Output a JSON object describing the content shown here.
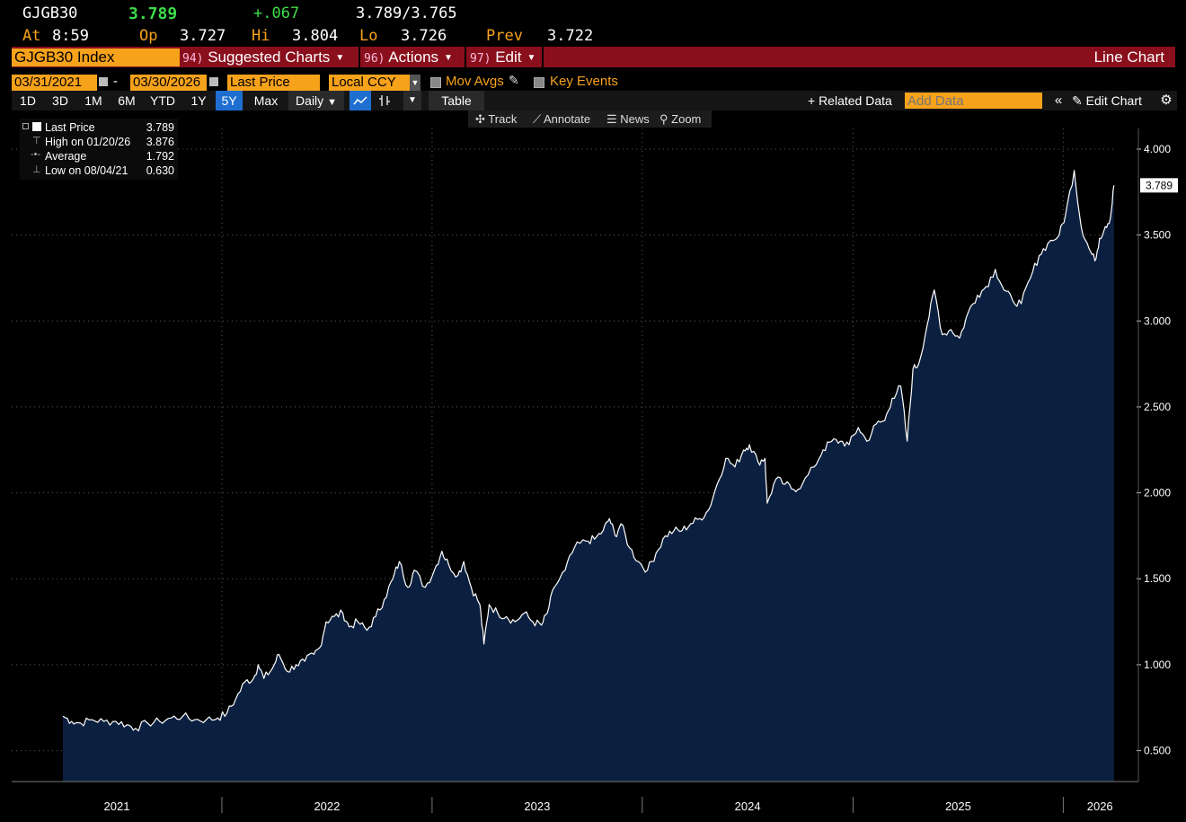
{
  "header": {
    "ticker": "GJGB30",
    "last": "3.789",
    "change": "+.067",
    "bid_ask": "3.789/3.765",
    "at_label": "At",
    "at_time": "8:59",
    "op_label": "Op",
    "op": "3.727",
    "hi_label": "Hi",
    "hi": "3.804",
    "lo_label": "Lo",
    "lo": "3.726",
    "prev_label": "Prev",
    "prev": "3.722"
  },
  "menubar": {
    "security": "GJGB30 Index",
    "suggested_num": "94)",
    "suggested": "Suggested Charts",
    "actions_num": "96)",
    "actions": "Actions",
    "edit_num": "97)",
    "edit": "Edit",
    "chart_type": "Line Chart"
  },
  "controls": {
    "start_date": "03/31/2021",
    "dash": "-",
    "end_date": "03/30/2026",
    "field": "Last Price",
    "currency": "Local CCY",
    "mov_avgs": "Mov Avgs",
    "key_events": "Key Events"
  },
  "toolbar": {
    "periods": [
      "1D",
      "3D",
      "1M",
      "6M",
      "YTD",
      "1Y",
      "5Y",
      "Max"
    ],
    "selected_period": "5Y",
    "frequency": "Daily",
    "table": "Table",
    "related": "+ Related Data",
    "add_data_placeholder": "Add Data",
    "edit_chart": "Edit Chart"
  },
  "annotate": {
    "track": "Track",
    "annotate": "Annotate",
    "news": "News",
    "zoom": "Zoom"
  },
  "legend": {
    "items": [
      {
        "label": "Last Price",
        "value": "3.789"
      },
      {
        "label": "High on 01/20/26",
        "value": "3.876"
      },
      {
        "label": "Average",
        "value": "1.792"
      },
      {
        "label": "Low on 08/04/21",
        "value": "0.630"
      }
    ]
  },
  "colors": {
    "accent_orange": "#f7a21b",
    "menubar_red": "#8a0f1c",
    "area_fill": "#0b2040",
    "line": "#ffffff",
    "change_green": "#3ddc4a"
  },
  "chart_data": {
    "type": "area",
    "x_unit": "date",
    "ylim": [
      0.32,
      4.12
    ],
    "yticks": [
      "0.500",
      "1.000",
      "1.500",
      "2.000",
      "2.500",
      "3.000",
      "3.500",
      "4.000"
    ],
    "xticks": [
      "2021",
      "2022",
      "2023",
      "2024",
      "2025",
      "2026"
    ],
    "last_label": "3.789",
    "grid": true,
    "legend_position": "top-left",
    "series": [
      {
        "points": [
          [
            "2021-03-31",
            0.7
          ],
          [
            "2021-04-15",
            0.67
          ],
          [
            "2021-05-01",
            0.66
          ],
          [
            "2021-05-20",
            0.68
          ],
          [
            "2021-06-10",
            0.67
          ],
          [
            "2021-07-01",
            0.67
          ],
          [
            "2021-07-20",
            0.65
          ],
          [
            "2021-08-04",
            0.63
          ],
          [
            "2021-08-25",
            0.66
          ],
          [
            "2021-09-15",
            0.67
          ],
          [
            "2021-10-05",
            0.69
          ],
          [
            "2021-10-25",
            0.7
          ],
          [
            "2021-11-15",
            0.68
          ],
          [
            "2021-12-05",
            0.68
          ],
          [
            "2021-12-25",
            0.69
          ],
          [
            "2022-01-10",
            0.72
          ],
          [
            "2022-01-25",
            0.8
          ],
          [
            "2022-02-10",
            0.9
          ],
          [
            "2022-02-25",
            0.92
          ],
          [
            "2022-03-05",
            1.0
          ],
          [
            "2022-03-15",
            0.92
          ],
          [
            "2022-03-30",
            0.98
          ],
          [
            "2022-04-10",
            1.06
          ],
          [
            "2022-04-25",
            0.96
          ],
          [
            "2022-05-10",
            1.0
          ],
          [
            "2022-05-25",
            1.02
          ],
          [
            "2022-06-10",
            1.06
          ],
          [
            "2022-06-20",
            1.1
          ],
          [
            "2022-07-01",
            1.25
          ],
          [
            "2022-07-15",
            1.28
          ],
          [
            "2022-07-30",
            1.3
          ],
          [
            "2022-08-10",
            1.22
          ],
          [
            "2022-08-25",
            1.25
          ],
          [
            "2022-09-10",
            1.2
          ],
          [
            "2022-09-25",
            1.28
          ],
          [
            "2022-10-10",
            1.38
          ],
          [
            "2022-10-25",
            1.5
          ],
          [
            "2022-11-05",
            1.6
          ],
          [
            "2022-11-20",
            1.45
          ],
          [
            "2022-12-01",
            1.55
          ],
          [
            "2022-12-20",
            1.45
          ],
          [
            "2023-01-05",
            1.55
          ],
          [
            "2023-01-18",
            1.66
          ],
          [
            "2023-01-30",
            1.58
          ],
          [
            "2023-02-15",
            1.52
          ],
          [
            "2023-02-25",
            1.6
          ],
          [
            "2023-03-10",
            1.45
          ],
          [
            "2023-03-25",
            1.35
          ],
          [
            "2023-04-01",
            1.12
          ],
          [
            "2023-04-10",
            1.35
          ],
          [
            "2023-04-25",
            1.3
          ],
          [
            "2023-05-10",
            1.28
          ],
          [
            "2023-05-25",
            1.25
          ],
          [
            "2023-06-10",
            1.3
          ],
          [
            "2023-06-25",
            1.25
          ],
          [
            "2023-07-10",
            1.23
          ],
          [
            "2023-07-20",
            1.3
          ],
          [
            "2023-08-01",
            1.45
          ],
          [
            "2023-08-20",
            1.55
          ],
          [
            "2023-09-05",
            1.68
          ],
          [
            "2023-09-25",
            1.72
          ],
          [
            "2023-10-10",
            1.73
          ],
          [
            "2023-10-25",
            1.78
          ],
          [
            "2023-11-05",
            1.85
          ],
          [
            "2023-11-15",
            1.75
          ],
          [
            "2023-11-25",
            1.82
          ],
          [
            "2023-12-10",
            1.68
          ],
          [
            "2023-12-25",
            1.6
          ],
          [
            "2024-01-10",
            1.55
          ],
          [
            "2024-01-25",
            1.65
          ],
          [
            "2024-02-10",
            1.75
          ],
          [
            "2024-02-25",
            1.78
          ],
          [
            "2024-03-10",
            1.78
          ],
          [
            "2024-03-25",
            1.82
          ],
          [
            "2024-04-10",
            1.85
          ],
          [
            "2024-04-25",
            1.9
          ],
          [
            "2024-05-10",
            2.05
          ],
          [
            "2024-05-25",
            2.2
          ],
          [
            "2024-06-10",
            2.15
          ],
          [
            "2024-06-25",
            2.25
          ],
          [
            "2024-07-05",
            2.28
          ],
          [
            "2024-07-20",
            2.18
          ],
          [
            "2024-08-01",
            2.2
          ],
          [
            "2024-08-05",
            1.94
          ],
          [
            "2024-08-20",
            2.08
          ],
          [
            "2024-09-05",
            2.05
          ],
          [
            "2024-09-20",
            2.02
          ],
          [
            "2024-10-05",
            2.05
          ],
          [
            "2024-10-25",
            2.15
          ],
          [
            "2024-11-10",
            2.25
          ],
          [
            "2024-11-25",
            2.3
          ],
          [
            "2024-12-10",
            2.3
          ],
          [
            "2024-12-25",
            2.28
          ],
          [
            "2025-01-10",
            2.38
          ],
          [
            "2025-01-25",
            2.3
          ],
          [
            "2025-02-10",
            2.4
          ],
          [
            "2025-02-25",
            2.42
          ],
          [
            "2025-03-10",
            2.55
          ],
          [
            "2025-03-25",
            2.62
          ],
          [
            "2025-04-05",
            2.3
          ],
          [
            "2025-04-15",
            2.72
          ],
          [
            "2025-04-25",
            2.75
          ],
          [
            "2025-05-10",
            2.98
          ],
          [
            "2025-05-22",
            3.18
          ],
          [
            "2025-06-05",
            2.92
          ],
          [
            "2025-06-20",
            2.95
          ],
          [
            "2025-07-05",
            2.9
          ],
          [
            "2025-07-20",
            3.05
          ],
          [
            "2025-08-05",
            3.15
          ],
          [
            "2025-08-20",
            3.2
          ],
          [
            "2025-09-05",
            3.3
          ],
          [
            "2025-09-20",
            3.18
          ],
          [
            "2025-10-05",
            3.12
          ],
          [
            "2025-10-20",
            3.1
          ],
          [
            "2025-11-05",
            3.25
          ],
          [
            "2025-11-20",
            3.38
          ],
          [
            "2025-12-05",
            3.45
          ],
          [
            "2025-12-25",
            3.5
          ],
          [
            "2026-01-05",
            3.62
          ],
          [
            "2026-01-20",
            3.876
          ],
          [
            "2026-02-01",
            3.55
          ],
          [
            "2026-02-15",
            3.42
          ],
          [
            "2026-02-25",
            3.35
          ],
          [
            "2026-03-05",
            3.48
          ],
          [
            "2026-03-15",
            3.55
          ],
          [
            "2026-03-24",
            3.6
          ],
          [
            "2026-03-30",
            3.789
          ]
        ]
      }
    ]
  }
}
